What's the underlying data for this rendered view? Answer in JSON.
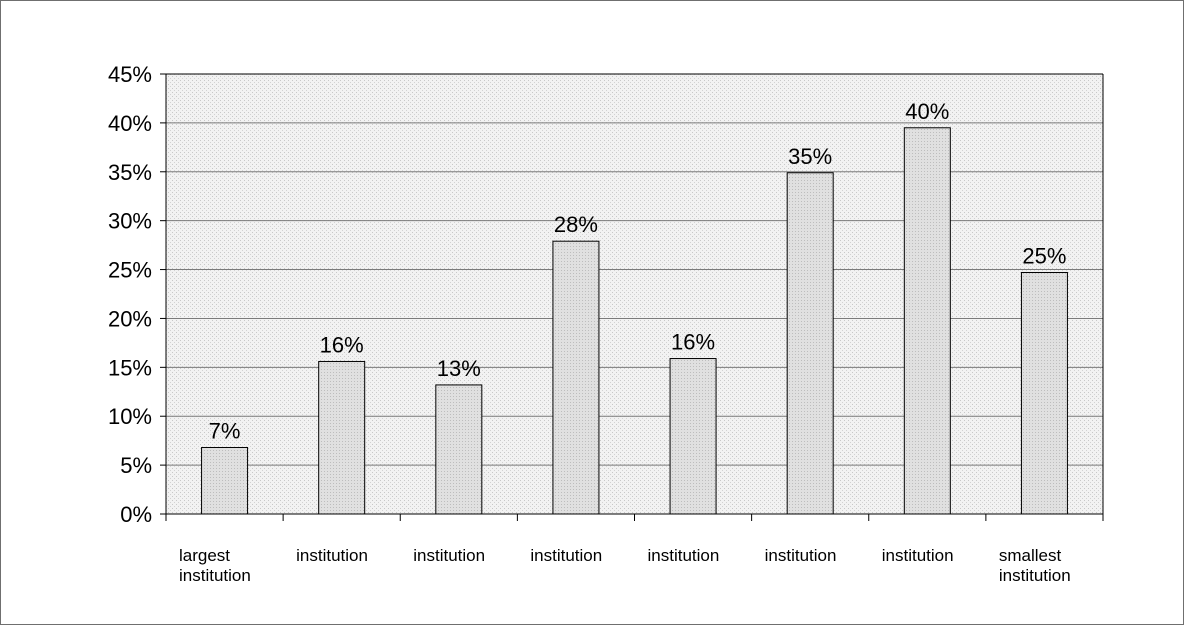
{
  "chart_data": {
    "type": "bar",
    "categories": [
      [
        "largest",
        "institution"
      ],
      [
        "institution"
      ],
      [
        "institution"
      ],
      [
        "institution"
      ],
      [
        "institution"
      ],
      [
        "institution"
      ],
      [
        "institution"
      ],
      [
        "smallest",
        "institution"
      ]
    ],
    "values": [
      6.8,
      15.6,
      13.2,
      27.9,
      15.9,
      34.9,
      39.5,
      24.7
    ],
    "value_labels": [
      "7%",
      "16%",
      "13%",
      "28%",
      "16%",
      "35%",
      "40%",
      "25%"
    ],
    "y_ticks": [
      0,
      5,
      10,
      15,
      20,
      25,
      30,
      35,
      40,
      45
    ],
    "y_tick_labels": [
      "0%",
      "5%",
      "10%",
      "15%",
      "20%",
      "25%",
      "30%",
      "35%",
      "40%",
      "45%"
    ],
    "ylim": [
      0,
      45
    ],
    "grid": true,
    "title": "",
    "xlabel": "",
    "ylabel": "",
    "colors": {
      "bar_fill": "#d9d9d9",
      "bar_stroke": "#000000",
      "plot_background": "#eeeeee",
      "grid": "#7a7a7a"
    }
  }
}
